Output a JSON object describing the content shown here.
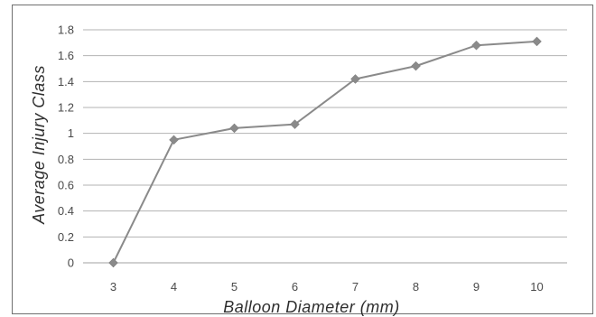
{
  "chart_data": {
    "type": "line",
    "title": "",
    "xlabel": "Balloon  Diameter  (mm)",
    "ylabel": "Average  Injury  Class",
    "x": [
      3,
      4,
      5,
      6,
      7,
      8,
      9,
      10
    ],
    "x_tick_labels": [
      "3",
      "4",
      "5",
      "6",
      "7",
      "8",
      "9",
      "10"
    ],
    "y_tick_labels": [
      "0",
      "0.2",
      "0.4",
      "0.6",
      "0.8",
      "1",
      "1.2",
      "1.4",
      "1.6",
      "1.8"
    ],
    "ylim": [
      0,
      1.8
    ],
    "grid": "horizontal",
    "legend": "none",
    "series": [
      {
        "values": [
          0.0,
          0.95,
          1.04,
          1.07,
          1.42,
          1.52,
          1.68,
          1.71
        ],
        "color": "#8a8a8a",
        "marker": "diamond"
      }
    ],
    "colors": {
      "gridline": "#b3b3b3",
      "frame": "#6f6f6f"
    }
  }
}
